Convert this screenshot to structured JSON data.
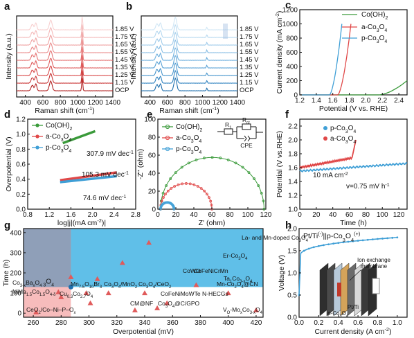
{
  "panels": {
    "a": {
      "label": "a",
      "xlabel": "Raman shift (cm",
      "xlabel_sup": "-1",
      "xlabel_end": ")",
      "ylabel": "Intensity (a.u.)",
      "xticks": [
        "400",
        "600",
        "800",
        "1000",
        "1200",
        "1400"
      ],
      "xlim": [
        300,
        1400
      ],
      "voltages": [
        "1.85 V",
        "1.75 V",
        "1.65 V",
        "1.55 V",
        "1.45 V",
        "1.35 V",
        "1.25 V",
        "1.15 V",
        "OCP"
      ],
      "colors": [
        "#f8d0d0",
        "#f4b9b9",
        "#efa2a2",
        "#ea8b8b",
        "#e57474",
        "#df5e5e",
        "#d84848",
        "#c93636",
        "#b22222"
      ]
    },
    "b": {
      "label": "b",
      "xlabel": "Raman shift (cm",
      "xlabel_sup": "-1",
      "xlabel_end": ")",
      "ylabel": "Intensity (a.u.)",
      "xticks": [
        "400",
        "600",
        "800",
        "1000",
        "1200",
        "1400"
      ],
      "xlim": [
        300,
        1400
      ],
      "voltages": [
        "1.85 V",
        "1.75 V",
        "1.65 V",
        "1.55 V",
        "1.45 V",
        "1.35 V",
        "1.25 V",
        "1.15 V",
        "OCP"
      ],
      "colors": [
        "#cfe6f5",
        "#b7d9f0",
        "#9fcbea",
        "#87bde4",
        "#70b0de",
        "#5aa2d6",
        "#4694cc",
        "#3284c0",
        "#1f6fad"
      ]
    },
    "c": {
      "label": "c",
      "xlabel": "Potential (V vs. RHE)",
      "ylabel": "Current density (mA cm",
      "ylabel_sup": "-2",
      "ylabel_end": ")",
      "xticks": [
        "1.2",
        "1.4",
        "1.6",
        "1.8",
        "2.0",
        "2.2",
        "2.4"
      ],
      "yticks": [
        "0",
        "200",
        "400",
        "600",
        "800",
        "1000",
        "1200"
      ],
      "xlim": [
        1.2,
        2.5
      ],
      "ylim": [
        0,
        1200
      ],
      "series": [
        {
          "name": "Co(OH)",
          "sub": "2",
          "color": "#3a9a3a",
          "onset": 2.16,
          "end_x": 2.5,
          "end_y": 200
        },
        {
          "name": "a-Co",
          "sub": "3",
          "tail": "O",
          "sub2": "4",
          "color": "#e04848",
          "onset": 1.66,
          "end_x": 1.82,
          "end_y": 1000
        },
        {
          "name": "p-Co",
          "sub": "3",
          "tail": "O",
          "sub2": "4",
          "color": "#3f9fd6",
          "onset": 1.56,
          "end_x": 1.71,
          "end_y": 1000
        }
      ]
    },
    "d": {
      "label": "d",
      "xlabel": "log|j|(mA cm",
      "xlabel_sup": "-2",
      "xlabel_end": ")|",
      "ylabel": "Overpotential (V)",
      "xticks": [
        "0.8",
        "1.2",
        "1.6",
        "2.0",
        "2.4",
        "2.8"
      ],
      "yticks": [
        "0.0",
        "0.2",
        "0.4",
        "0.6",
        "0.8",
        "1.0",
        "1.2"
      ],
      "xlim": [
        0.8,
        2.8
      ],
      "ylim": [
        0,
        1.2
      ],
      "legend": [
        {
          "name": "Co(OH)",
          "sub": "2",
          "color": "#3a9a3a"
        },
        {
          "name": "a-Co",
          "sub": "3",
          "tail": "O",
          "sub2": "4",
          "color": "#e04848"
        },
        {
          "name": "p-Co",
          "sub": "3",
          "tail": "O",
          "sub2": "4",
          "color": "#3f9fd6"
        }
      ],
      "tafel": [
        {
          "value": "307.9 mV dec",
          "sup": "-1",
          "color": "#3a9a3a",
          "x": [
            1.45,
            2.05
          ],
          "y": [
            0.88,
            1.04
          ]
        },
        {
          "value": "105.3 mV dec",
          "sup": "-1",
          "color": "#e04848",
          "x": [
            1.4,
            2.45
          ],
          "y": [
            0.385,
            0.49
          ]
        },
        {
          "value": "74.6 mV dec",
          "sup": "-1",
          "color": "#3f9fd6",
          "x": [
            1.4,
            2.45
          ],
          "y": [
            0.36,
            0.44
          ]
        }
      ]
    },
    "e": {
      "label": "e",
      "xlabel": "Z' (ohm)",
      "ylabel": "-Z'' (ohm)",
      "xticks": [
        "0",
        "20",
        "40",
        "60",
        "80",
        "100",
        "120"
      ],
      "yticks": [
        "0",
        "20",
        "40",
        "60",
        "80",
        "100"
      ],
      "xlim": [
        0,
        120
      ],
      "ylim": [
        0,
        100
      ],
      "legend": [
        {
          "name": "Co(OH)",
          "sub": "2",
          "color": "#3a9a3a"
        },
        {
          "name": "a-Co",
          "sub": "3",
          "tail": "O",
          "sub2": "4",
          "color": "#e04848"
        },
        {
          "name": "p-Co",
          "sub": "3",
          "tail": "O",
          "sub2": "4",
          "color": "#3f9fd6"
        }
      ],
      "arcs": [
        {
          "color": "#3a9a3a",
          "x0": 3,
          "x1": 118
        },
        {
          "color": "#e04848",
          "x0": 3,
          "x1": 60
        },
        {
          "color": "#3f9fd6",
          "x0": 3,
          "x1": 18
        }
      ],
      "circuit": {
        "r1": "R",
        "r1_sub": "1",
        "r2": "R",
        "r2_sub": "ct",
        "cpe": "CPE"
      }
    },
    "f": {
      "label": "f",
      "xlabel": "Time (h)",
      "ylabel": "Potential (V vs.RHE)",
      "xticks": [
        "0",
        "20",
        "40",
        "60",
        "80",
        "100",
        "120"
      ],
      "yticks": [
        "1.0",
        "1.2",
        "1.4",
        "1.6",
        "1.8",
        "2.0",
        "2.2"
      ],
      "xlim": [
        0,
        130
      ],
      "ylim": [
        1.0,
        2.3
      ],
      "legend": [
        {
          "name": "p-Co",
          "sub": "3",
          "tail": "O",
          "sub2": "4",
          "color": "#3f9fd6"
        },
        {
          "name": "a-Co",
          "sub": "3",
          "tail": "O",
          "sub2": "4",
          "color": "#e04848"
        }
      ],
      "annotation": "10 mA cm",
      "annotation_sup": "-2",
      "rate": "v=0.75 mV h",
      "rate_sup": "-1",
      "series": [
        {
          "color": "#3f9fd6",
          "x_end": 130,
          "y_start": 1.55,
          "y_end": 1.66
        },
        {
          "color": "#e04848",
          "x_end": 68,
          "y_start": 1.6,
          "y_end": 1.75,
          "spike_to": 2.0
        }
      ]
    },
    "g": {
      "label": "g",
      "xlabel": "Overpotential (mV)",
      "ylabel": "Time (h)",
      "xticks": [
        "260",
        "280",
        "300",
        "320",
        "340",
        "360",
        "380",
        "400",
        "420"
      ],
      "yticks": [
        "0",
        "100",
        "200",
        "300",
        "400"
      ],
      "xlim": [
        253,
        425
      ],
      "ylim": [
        -20,
        420
      ],
      "this_work": {
        "label": "p-Co",
        "sub": "3",
        "tail": "O",
        "sub2": "4",
        "x": 287,
        "y": 130
      },
      "points": [
        {
          "t": "La- and Mn-doped Co",
          "s": "3",
          "t2": "O",
          "s2": "4",
          "x": 343,
          "y": 350
        },
        {
          "t": "Er-Co",
          "s": "3",
          "t2": "O",
          "s2": "4",
          "x": 324,
          "y": 250
        },
        {
          "t": "CoWO",
          "x": 287,
          "y": 180
        },
        {
          "t": "CoFeNiCrMn",
          "x": 306,
          "y": 170
        },
        {
          "t": "Ta",
          "s": "1",
          "t2": "Co",
          "s2": "3-x",
          "t3": "O",
          "s3": "4",
          "x": 377,
          "y": 140
        },
        {
          "t": "Co",
          "s": "3-x",
          "t2": "Ba",
          "s2": "x",
          "t3": "O",
          "s3": "4",
          "x": 278,
          "y": 105
        },
        {
          "t": "NiMn",
          "s": "1.5",
          "t2": "Co",
          "s2": "1.5",
          "t3": "O",
          "s3": "4-δ",
          "x": 280,
          "y": 80
        },
        {
          "t": "Mn",
          "s": "7.5",
          "t2": "O",
          "s2": "10",
          "t3": "Br",
          "s3": "3",
          "x": 298,
          "y": 100
        },
        {
          "t": "Co",
          "s": "3",
          "t2": "O",
          "s2": "4",
          "t3": "/MnO",
          "s3": "2",
          "x": 314,
          "y": 100
        },
        {
          "t": "Co",
          "s": "3",
          "t2": "O",
          "s2": "4",
          "t3": "/CeO",
          "s3": "2",
          "x": 340,
          "y": 100
        },
        {
          "t": "Mn-Co",
          "s": "2",
          "t2": "O",
          "s2": "4",
          "t3": "@CN",
          "x": 400,
          "y": 100
        },
        {
          "t": "Cu",
          "s": "0.3",
          "t2": "Co",
          "s2": "2.7",
          "t3": "O",
          "s3": "4",
          "x": 301,
          "y": 50
        },
        {
          "t": "CoFeNiMoWTe N-HECGs",
          "x": 356,
          "y": 50
        },
        {
          "t": "CM@NF",
          "x": 333,
          "y": 15
        },
        {
          "t": "Co",
          "s": "3",
          "t2": "O",
          "s2": "4",
          "t3": "@C/GPO",
          "x": 349,
          "y": 25
        },
        {
          "t": "CeO",
          "s": "2",
          "t2": "/Co–Ni–P–O",
          "s2": "x",
          "x": 262,
          "y": 5
        },
        {
          "t": "V",
          "s": "O",
          "t2": "-Mo",
          "s2": "x",
          "t3": "Co",
          "s3": "3-x",
          "t4": "O",
          "s4": "4",
          "x": 420,
          "y": 15
        }
      ]
    },
    "h": {
      "label": "h",
      "xlabel": "Current density (A cm",
      "xlabel_sup": "-2",
      "xlabel_end": ")",
      "ylabel": "Voltage (V)",
      "xticks": [
        "0.0",
        "0.2",
        "0.4",
        "0.6",
        "0.8",
        "1.0"
      ],
      "yticks": [
        "0.0",
        "0.5",
        "1.0",
        "1.5",
        "2.0"
      ],
      "xlim": [
        0,
        1.1
      ],
      "ylim": [
        0,
        2.0
      ],
      "title": "Pt/Ti",
      "title_sup": "(-)",
      "title_mid": "||p-Co",
      "title_sub": "3",
      "title_o": "O",
      "title_sub2": "4",
      "title_sup2": "(+)",
      "membrane_label": "Ion exchange membrane",
      "cathode_label": "Pt/Ti",
      "anode_label": "p-Co",
      "anode_sub": "3",
      "anode_o": "O",
      "anode_sub2": "4",
      "colors": {
        "curve": "#3f9fd6",
        "membrane": "#e8843a"
      }
    }
  }
}
